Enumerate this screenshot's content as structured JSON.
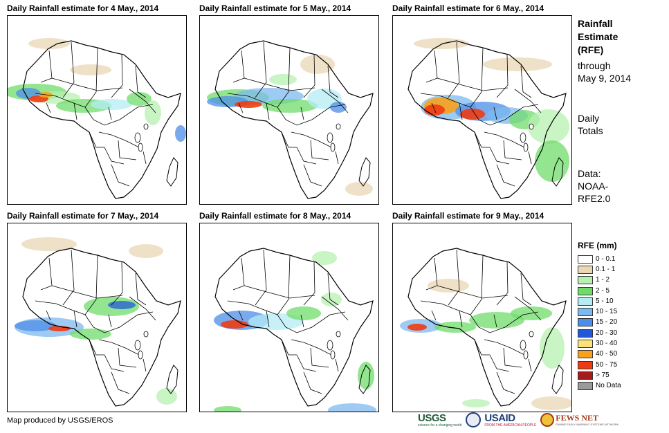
{
  "panels": [
    {
      "title": "Daily Rainfall estimate for 4 May., 2014"
    },
    {
      "title": "Daily Rainfall estimate for 5 May., 2014"
    },
    {
      "title": "Daily Rainfall estimate for 6 May., 2014"
    },
    {
      "title": "Daily Rainfall estimate for 7 May., 2014"
    },
    {
      "title": "Daily Rainfall estimate for 8 May., 2014"
    },
    {
      "title": "Daily Rainfall estimate for 9 May., 2014"
    }
  ],
  "side": {
    "title_lines": [
      "Rainfall",
      "Estimate",
      "(RFE)"
    ],
    "through_lines": [
      "through",
      "May 9, 2014"
    ],
    "daily_lines": [
      "Daily",
      "Totals"
    ],
    "data_lines": [
      "Data:",
      "NOAA-",
      "RFE2.0"
    ]
  },
  "legend": {
    "title": "RFE (mm)",
    "items": [
      {
        "label": "0 - 0.1",
        "color": "#ffffff"
      },
      {
        "label": "0.1 - 1",
        "color": "#ead7b5"
      },
      {
        "label": "1 - 2",
        "color": "#b7f0b0"
      },
      {
        "label": "2 - 5",
        "color": "#6fdc6a"
      },
      {
        "label": "5 - 10",
        "color": "#b4ecf4"
      },
      {
        "label": "10 - 15",
        "color": "#7db9ef"
      },
      {
        "label": "15 - 20",
        "color": "#4d8ee8"
      },
      {
        "label": "20 - 30",
        "color": "#2359d8"
      },
      {
        "label": "30 - 40",
        "color": "#fde37a"
      },
      {
        "label": "40 - 50",
        "color": "#f6a21c"
      },
      {
        "label": "50 - 75",
        "color": "#f03b12"
      },
      {
        "label": "> 75",
        "color": "#a61c1c"
      },
      {
        "label": "No Data",
        "color": "#9a9a9a"
      }
    ]
  },
  "credit": "Map produced by USGS/EROS",
  "logos": {
    "usgs": "USGS",
    "usgs_tagline": "science for a changing world",
    "usaid": "USAID",
    "usaid_tagline": "FROM THE AMERICAN PEOPLE",
    "fews": "FEWS NET",
    "fews_tagline": "FAMINE EARLY WARNING SYSTEMS NETWORK"
  }
}
